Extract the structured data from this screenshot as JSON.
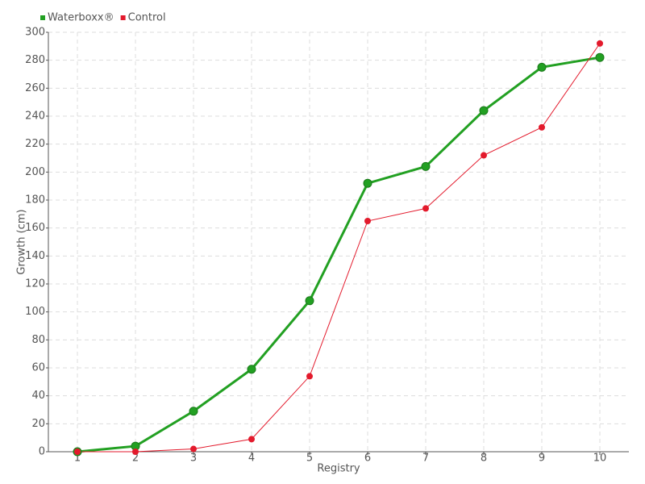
{
  "chart_data": {
    "type": "line",
    "categories": [
      "1",
      "2",
      "3",
      "4",
      "5",
      "6",
      "7",
      "8",
      "9",
      "10"
    ],
    "series": [
      {
        "name": "Waterboxx®",
        "color": "#22a022",
        "values": [
          0,
          4,
          29,
          59,
          108,
          192,
          204,
          244,
          275,
          282
        ]
      },
      {
        "name": "Control",
        "color": "#e31a2c",
        "values": [
          0,
          0,
          2,
          9,
          54,
          165,
          174,
          212,
          232,
          292
        ]
      }
    ],
    "ylim": [
      0,
      300
    ],
    "yticks": [
      0,
      20,
      40,
      60,
      80,
      100,
      120,
      140,
      160,
      180,
      200,
      220,
      240,
      260,
      280,
      300
    ],
    "ylabel": "Growth (cm)",
    "xlabel": "Registry",
    "grid": true,
    "legend": "top-left"
  }
}
